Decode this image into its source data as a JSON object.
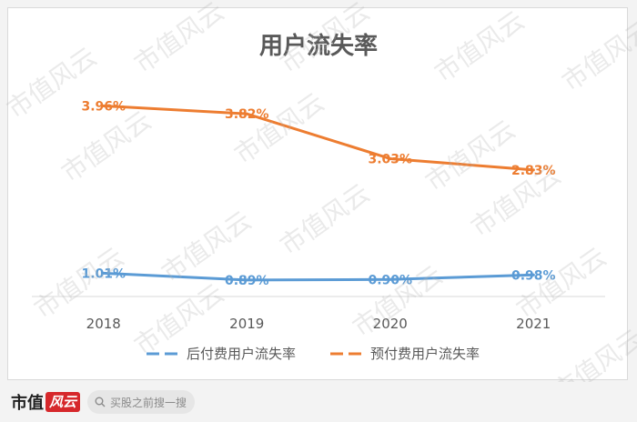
{
  "chart_data": {
    "type": "line",
    "title": "用户流失率",
    "categories": [
      "2018",
      "2019",
      "2020",
      "2021"
    ],
    "series": [
      {
        "name": "后付费用户流失率",
        "values": [
          1.01,
          0.89,
          0.9,
          0.98
        ],
        "labels": [
          "1.01%",
          "0.89%",
          "0.90%",
          "0.98%"
        ],
        "color": "#5b9bd5"
      },
      {
        "name": "预付费用户流失率",
        "values": [
          3.96,
          3.82,
          3.03,
          2.83
        ],
        "labels": [
          "3.96%",
          "3.82%",
          "3.03%",
          "2.83%"
        ],
        "color": "#ed7d31"
      }
    ],
    "ylim": [
      0.6,
      4.4
    ],
    "xlabel": "",
    "ylabel": "",
    "grid": false,
    "legend_position": "bottom"
  },
  "watermark_text": "市值风云",
  "footer": {
    "brand_name": "市值",
    "brand_tag": "风云",
    "search_placeholder": "买股之前搜一搜"
  }
}
